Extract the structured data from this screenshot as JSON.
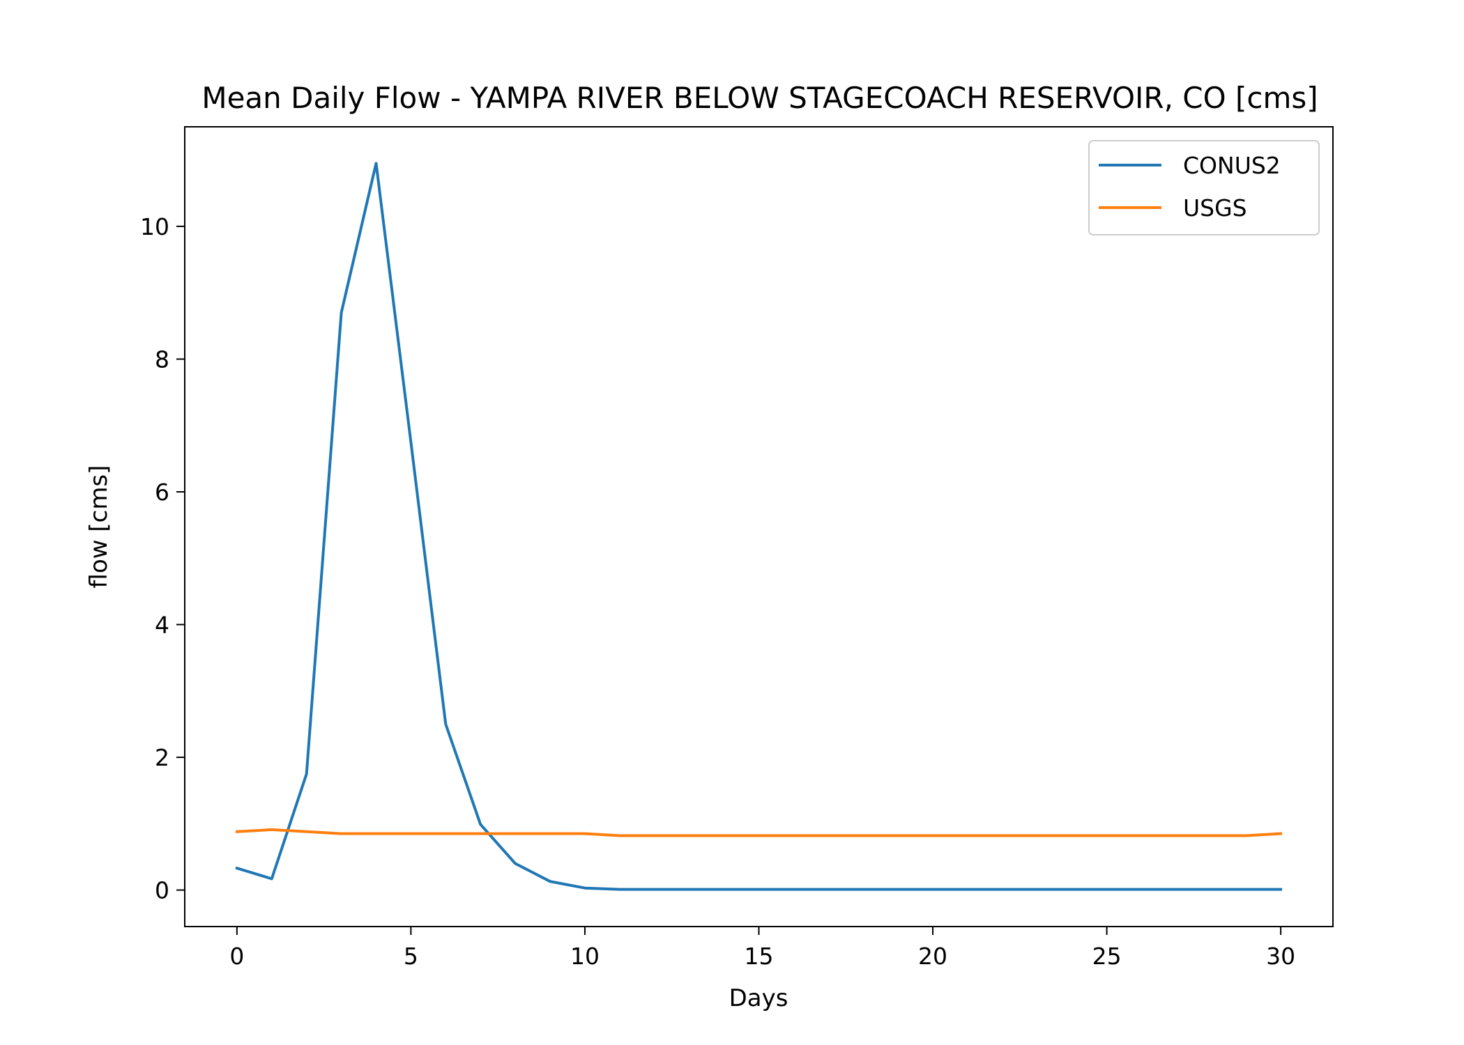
{
  "chart_data": {
    "type": "line",
    "title": "Mean Daily Flow - YAMPA RIVER BELOW STAGECOACH RESERVOIR, CO [cms]",
    "xlabel": "Days",
    "ylabel": "flow [cms]",
    "xlim": [
      -1.5,
      31.5
    ],
    "ylim": [
      -0.55,
      11.5
    ],
    "xticks": [
      0,
      5,
      10,
      15,
      20,
      25,
      30
    ],
    "yticks": [
      0,
      2,
      4,
      6,
      8,
      10
    ],
    "grid": false,
    "legend_position": "top-right",
    "x": [
      0,
      1,
      2,
      3,
      4,
      5,
      6,
      7,
      8,
      9,
      10,
      11,
      12,
      13,
      14,
      15,
      16,
      17,
      18,
      19,
      20,
      21,
      22,
      23,
      24,
      25,
      26,
      27,
      28,
      29,
      30
    ],
    "series": [
      {
        "name": "CONUS2",
        "color": "#1f77b4",
        "values": [
          0.33,
          0.17,
          1.75,
          8.7,
          10.95,
          6.75,
          2.5,
          0.99,
          0.4,
          0.13,
          0.03,
          0.01,
          0.01,
          0.01,
          0.01,
          0.01,
          0.01,
          0.01,
          0.01,
          0.01,
          0.01,
          0.01,
          0.01,
          0.01,
          0.01,
          0.01,
          0.01,
          0.01,
          0.01,
          0.01,
          0.01
        ]
      },
      {
        "name": "USGS",
        "color": "#ff7f0e",
        "values": [
          0.88,
          0.91,
          0.88,
          0.85,
          0.85,
          0.85,
          0.85,
          0.85,
          0.85,
          0.85,
          0.85,
          0.82,
          0.82,
          0.82,
          0.82,
          0.82,
          0.82,
          0.82,
          0.82,
          0.82,
          0.82,
          0.82,
          0.82,
          0.82,
          0.82,
          0.82,
          0.82,
          0.82,
          0.82,
          0.82,
          0.85
        ]
      }
    ]
  }
}
